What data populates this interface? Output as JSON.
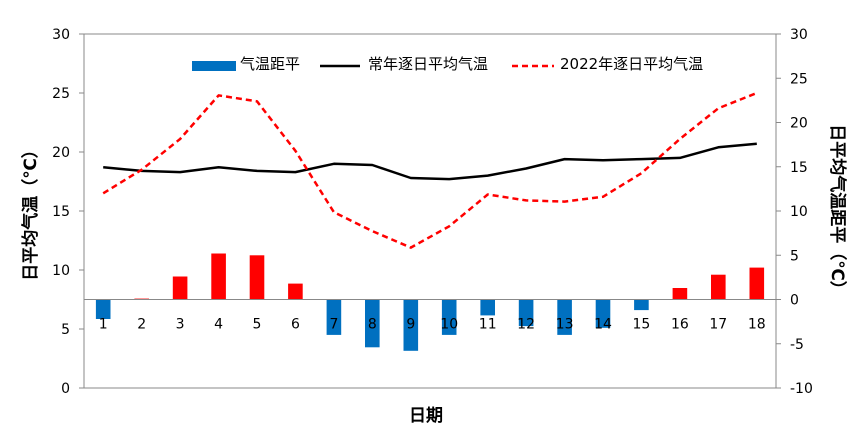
{
  "chart_data": {
    "type": "bar+line",
    "x": [
      "1",
      "2",
      "3",
      "4",
      "5",
      "6",
      "7",
      "8",
      "9",
      "10",
      "11",
      "12",
      "13",
      "14",
      "15",
      "16",
      "17",
      "18"
    ],
    "xlabel": "日期",
    "ylabel_left": "日平均气温（℃）",
    "ylabel_right": "日平均气温距平（℃）",
    "left_axis": {
      "min": 0,
      "max": 30,
      "step": 5,
      "ticks": [
        "0",
        "5",
        "10",
        "15",
        "20",
        "25",
        "30"
      ]
    },
    "right_axis": {
      "min": -10,
      "max": 30,
      "step": 5,
      "ticks": [
        "-10",
        "-5",
        "0",
        "5",
        "10",
        "15",
        "20",
        "25",
        "30"
      ]
    },
    "legend_position": "top",
    "series": [
      {
        "name": "气温距平",
        "kind": "bar",
        "axis": "right",
        "positive_color": "#ff0000",
        "negative_color": "#0070c0",
        "values": [
          -2.2,
          0.1,
          2.6,
          5.2,
          5.0,
          1.8,
          -4.0,
          -5.4,
          -5.8,
          -4.0,
          -1.8,
          -3.0,
          -4.0,
          -3.2,
          -1.2,
          1.3,
          2.8,
          3.6
        ]
      },
      {
        "name": "常年逐日平均气温",
        "kind": "line",
        "axis": "left",
        "color": "#000000",
        "dash": "solid",
        "values": [
          18.7,
          18.4,
          18.3,
          18.7,
          18.4,
          18.3,
          19.0,
          18.9,
          17.8,
          17.7,
          18.0,
          18.6,
          19.4,
          19.3,
          19.4,
          19.5,
          20.4,
          20.7
        ]
      },
      {
        "name": "2022年逐日平均气温",
        "kind": "line",
        "axis": "left",
        "color": "#ff0000",
        "dash": "dashed",
        "values": [
          16.5,
          18.5,
          21.1,
          24.8,
          24.3,
          20.1,
          14.9,
          13.3,
          11.9,
          13.7,
          16.4,
          15.9,
          15.8,
          16.2,
          18.2,
          21.1,
          23.7,
          25.0
        ]
      }
    ]
  }
}
